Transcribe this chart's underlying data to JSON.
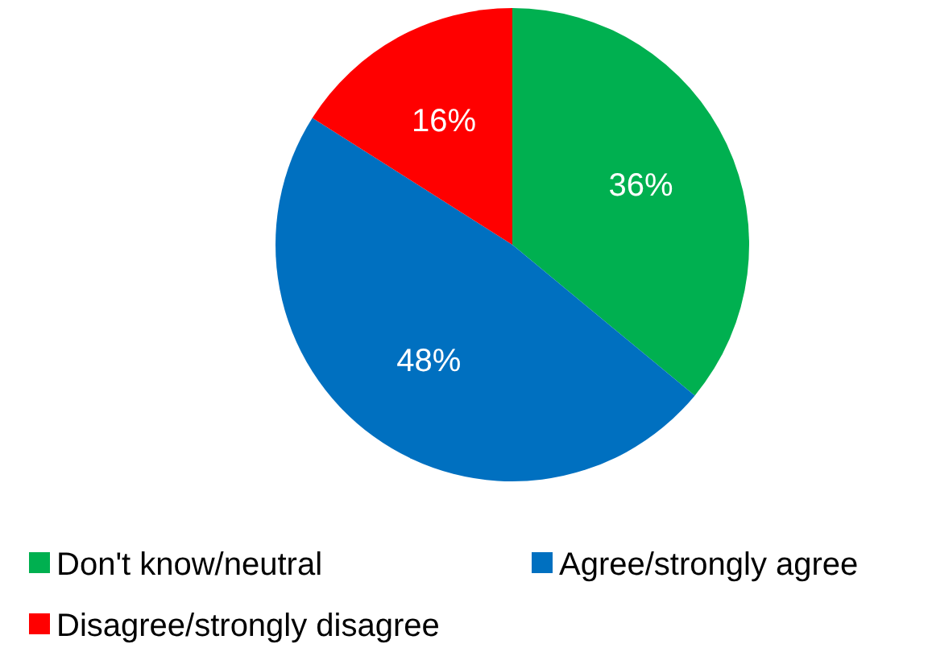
{
  "chart_data": {
    "type": "pie",
    "categories": [
      "Don't know/neutral",
      "Agree/strongly agree",
      "Disagree/strongly disagree"
    ],
    "values": [
      36,
      48,
      16
    ],
    "colors": [
      "#00b050",
      "#0070c0",
      "#ff0000"
    ],
    "value_labels": [
      "36%",
      "48%",
      "16%"
    ],
    "legend": "bottom"
  }
}
